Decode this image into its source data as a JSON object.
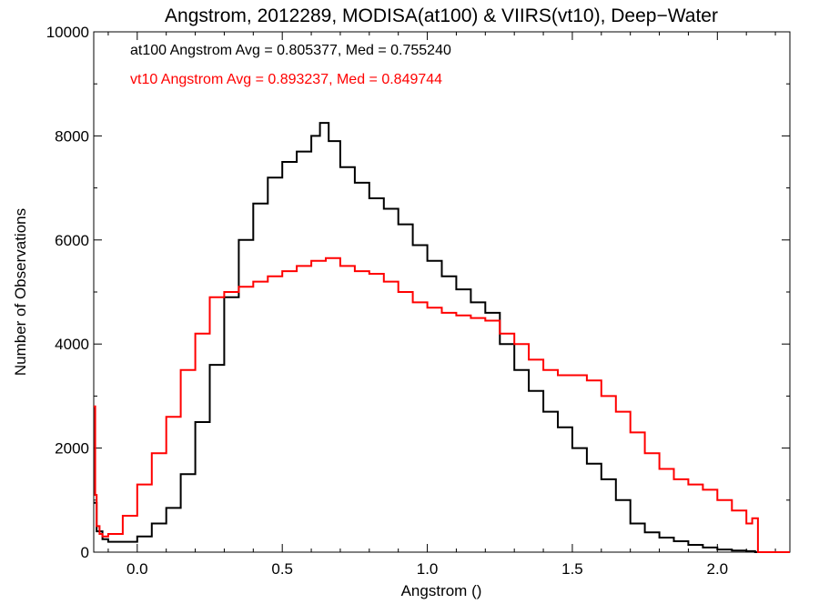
{
  "chart_data": {
    "type": "line",
    "step": true,
    "title": "Angstrom, 2012289, MODISA(at100) & VIIRS(vt10), Deep−Water",
    "xlabel": "Angstrom ()",
    "ylabel": "Number of Observations",
    "xlim": [
      -0.15,
      2.25
    ],
    "ylim": [
      0,
      10000
    ],
    "xticks": [
      0.0,
      0.5,
      1.0,
      1.5,
      2.0
    ],
    "xtick_labels": [
      "0.0",
      "0.5",
      "1.0",
      "1.5",
      "2.0"
    ],
    "yticks": [
      0,
      2000,
      4000,
      6000,
      8000,
      10000
    ],
    "ytick_labels": [
      "0",
      "2000",
      "4000",
      "6000",
      "8000",
      "10000"
    ],
    "grid": false,
    "annotations": [
      {
        "text": "at100 Angstrom Avg = 0.805377, Med = 0.755240",
        "color": "#000000"
      },
      {
        "text": "vt10 Angstrom Avg = 0.893237, Med = 0.849744",
        "color": "#ff0000"
      }
    ],
    "series": [
      {
        "color": "#000000",
        "x": [
          -0.15,
          -0.14,
          -0.12,
          -0.1,
          -0.05,
          0.0,
          0.05,
          0.1,
          0.15,
          0.2,
          0.25,
          0.3,
          0.35,
          0.4,
          0.45,
          0.5,
          0.55,
          0.6,
          0.63,
          0.66,
          0.7,
          0.75,
          0.8,
          0.85,
          0.9,
          0.95,
          1.0,
          1.05,
          1.1,
          1.15,
          1.2,
          1.25,
          1.3,
          1.35,
          1.4,
          1.45,
          1.5,
          1.55,
          1.6,
          1.65,
          1.7,
          1.75,
          1.8,
          1.85,
          1.9,
          1.95,
          2.0,
          2.05,
          2.1,
          2.13
        ],
        "values": [
          950,
          400,
          250,
          200,
          200,
          300,
          550,
          850,
          1500,
          2500,
          3600,
          4900,
          6000,
          6700,
          7200,
          7500,
          7700,
          8000,
          8250,
          7900,
          7400,
          7100,
          6800,
          6600,
          6300,
          5900,
          5600,
          5300,
          5050,
          4800,
          4600,
          4000,
          3500,
          3100,
          2700,
          2400,
          2000,
          1700,
          1400,
          1000,
          550,
          380,
          280,
          210,
          140,
          90,
          50,
          30,
          20,
          0
        ]
      },
      {
        "color": "#ff0000",
        "x": [
          -0.15,
          -0.145,
          -0.14,
          -0.13,
          -0.12,
          -0.1,
          -0.05,
          0.0,
          0.05,
          0.1,
          0.15,
          0.2,
          0.25,
          0.3,
          0.35,
          0.4,
          0.45,
          0.5,
          0.55,
          0.6,
          0.65,
          0.7,
          0.75,
          0.8,
          0.85,
          0.9,
          0.95,
          1.0,
          1.05,
          1.1,
          1.15,
          1.2,
          1.25,
          1.3,
          1.35,
          1.4,
          1.45,
          1.5,
          1.55,
          1.6,
          1.65,
          1.7,
          1.75,
          1.8,
          1.85,
          1.9,
          1.95,
          2.0,
          2.05,
          2.1,
          2.12,
          2.14
        ],
        "values": [
          2800,
          1100,
          500,
          350,
          300,
          350,
          700,
          1300,
          1900,
          2600,
          3500,
          4200,
          4900,
          5000,
          5100,
          5200,
          5300,
          5400,
          5500,
          5600,
          5650,
          5500,
          5400,
          5350,
          5200,
          5000,
          4800,
          4700,
          4600,
          4550,
          4500,
          4450,
          4200,
          4000,
          3700,
          3500,
          3400,
          3400,
          3300,
          3000,
          2700,
          2300,
          1900,
          1600,
          1400,
          1300,
          1200,
          1000,
          800,
          550,
          650,
          0
        ]
      }
    ]
  }
}
